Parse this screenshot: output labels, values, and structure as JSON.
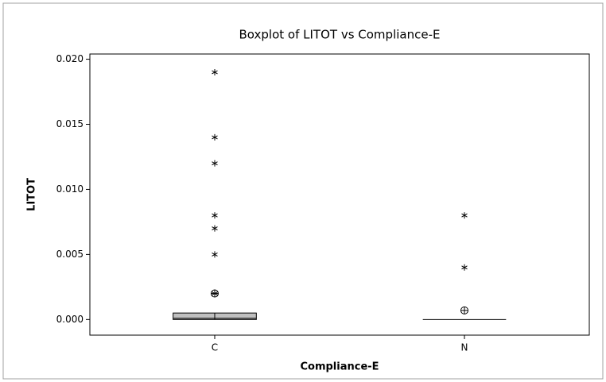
{
  "chart_data": {
    "type": "boxplot",
    "title": "Boxplot of LITOT vs Compliance-E",
    "x_label": "Compliance-E",
    "y_label": "LITOT",
    "categories": [
      "C",
      "N"
    ],
    "boxes": [
      {
        "q1": 0,
        "median": 0.0001,
        "q3": 0.0005,
        "whisker_low": 0,
        "whisker_high": 0.0005,
        "mean": 0.002,
        "outliers": [
          0.019,
          0.014,
          0.012,
          0.008,
          0.007,
          0.005,
          0.002
        ]
      },
      {
        "q1": 0,
        "median": 0,
        "q3": 0,
        "whisker_low": 0,
        "whisker_high": 0,
        "mean": 0.0007,
        "outliers": [
          0.008,
          0.004
        ]
      }
    ],
    "box_color": "#c0c0c0",
    "ylim": [
      -0.0012,
      0.0204
    ],
    "yticks": [
      {
        "value": 0,
        "label": "0.000"
      },
      {
        "value": 0.005,
        "label": "0.005"
      },
      {
        "value": 0.01,
        "label": "0.010"
      },
      {
        "value": 0.015,
        "label": "0.015"
      },
      {
        "value": 0.02,
        "label": "0.020"
      }
    ]
  }
}
